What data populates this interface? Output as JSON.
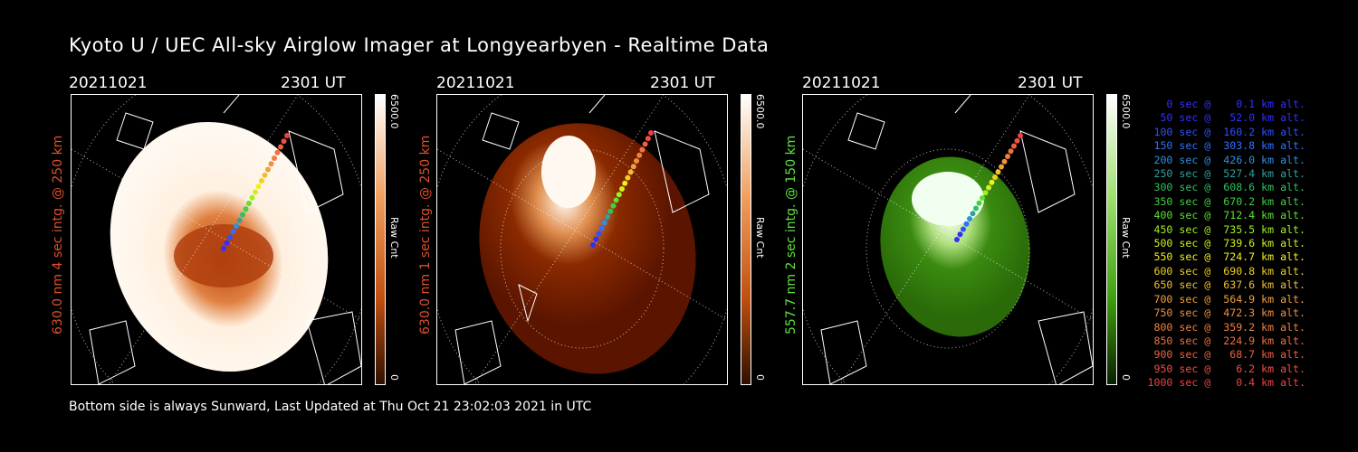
{
  "title": "Kyoto U / UEC All-sky Airglow Imager at Longyearbyen - Realtime Data",
  "panels": [
    {
      "date": "20211021",
      "time": "2301 UT",
      "side_label": "630.0 nm 4 sec intg. @ 250 km",
      "side_color": "#e0502a",
      "cbar_max": "6500.0",
      "cbar_min": "0",
      "cbar_label": "Raw Cnt",
      "cmap": [
        "#ffffff",
        "#f0a060",
        "#c05010",
        "#301000"
      ],
      "sky_base": "#fff0e0"
    },
    {
      "date": "20211021",
      "time": "2301 UT",
      "side_label": "630.0 nm 1 sec intg. @ 250 km",
      "side_color": "#e0502a",
      "cbar_max": "6500.0",
      "cbar_min": "0",
      "cbar_label": "Raw Cnt",
      "cmap": [
        "#ffffff",
        "#f0a060",
        "#c05010",
        "#301000"
      ],
      "sky_base": "#7a1a00"
    },
    {
      "date": "20211021",
      "time": "2301 UT",
      "side_label": "557.7 nm 2 sec intg. @ 150 km",
      "side_color": "#60e040",
      "cbar_max": "6500.0",
      "cbar_min": "0",
      "cbar_label": "Raw Cnt",
      "cmap": [
        "#ffffff",
        "#a0e070",
        "#40a010",
        "#0a2000"
      ],
      "sky_base": "#3a7a10"
    }
  ],
  "legend": [
    {
      "text": "   0 sec @    0.1 km alt.",
      "color": "#3030ff"
    },
    {
      "text": "  50 sec @   52.0 km alt.",
      "color": "#3030ff"
    },
    {
      "text": " 100 sec @  160.2 km alt.",
      "color": "#3050ff"
    },
    {
      "text": " 150 sec @  303.8 km alt.",
      "color": "#3070ff"
    },
    {
      "text": " 200 sec @  426.0 km alt.",
      "color": "#3090e0"
    },
    {
      "text": " 250 sec @  527.4 km alt.",
      "color": "#30a0a0"
    },
    {
      "text": " 300 sec @  608.6 km alt.",
      "color": "#30c060"
    },
    {
      "text": " 350 sec @  670.2 km alt.",
      "color": "#40d040"
    },
    {
      "text": " 400 sec @  712.4 km alt.",
      "color": "#60e030"
    },
    {
      "text": " 450 sec @  735.5 km alt.",
      "color": "#a0f020"
    },
    {
      "text": " 500 sec @  739.6 km alt.",
      "color": "#d0f020"
    },
    {
      "text": " 550 sec @  724.7 km alt.",
      "color": "#f0f020"
    },
    {
      "text": " 600 sec @  690.8 km alt.",
      "color": "#f0d020"
    },
    {
      "text": " 650 sec @  637.6 km alt.",
      "color": "#f0c030"
    },
    {
      "text": " 700 sec @  564.9 km alt.",
      "color": "#f0a040"
    },
    {
      "text": " 750 sec @  472.3 km alt.",
      "color": "#f09040"
    },
    {
      "text": " 800 sec @  359.2 km alt.",
      "color": "#f08040"
    },
    {
      "text": " 850 sec @  224.9 km alt.",
      "color": "#f07040"
    },
    {
      "text": " 900 sec @   68.7 km alt.",
      "color": "#f06040"
    },
    {
      "text": " 950 sec @    6.2 km alt.",
      "color": "#f05040"
    },
    {
      "text": "1000 sec @    0.4 km alt.",
      "color": "#f04040"
    }
  ],
  "footer": "Bottom side is always Sunward, Last Updated at Thu Oct 21 23:02:03 2021 in UTC"
}
